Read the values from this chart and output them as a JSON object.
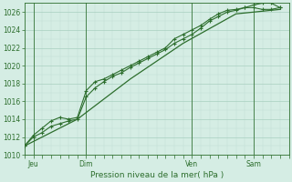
{
  "xlabel": "Pression niveau de la mer( hPa )",
  "background_color": "#d5ede4",
  "grid_color_major": "#a8cfc0",
  "grid_color_minor": "#c0ddd4",
  "line_color": "#2d6e2d",
  "ylim": [
    1010,
    1027
  ],
  "yticks": [
    1010,
    1012,
    1014,
    1016,
    1018,
    1020,
    1022,
    1024,
    1026
  ],
  "day_labels": [
    "Jeu",
    "Dim",
    "Ven",
    "Sam"
  ],
  "day_positions": [
    0.5,
    3.5,
    9.5,
    13.0
  ],
  "vline_positions": [
    0.5,
    3.5,
    9.5,
    13.0
  ],
  "series1_x": [
    0.0,
    0.5,
    1.0,
    1.5,
    2.0,
    2.5,
    3.0,
    3.5,
    4.0,
    4.5,
    5.0,
    5.5,
    6.0,
    6.5,
    7.0,
    7.5,
    8.0,
    8.5,
    9.0,
    9.5,
    10.0,
    10.5,
    11.0,
    11.5,
    12.0,
    12.5,
    13.0,
    13.5,
    14.0,
    14.5
  ],
  "series1_y": [
    1011.0,
    1012.0,
    1012.5,
    1013.2,
    1013.5,
    1013.8,
    1014.0,
    1016.5,
    1017.5,
    1018.2,
    1018.8,
    1019.2,
    1019.8,
    1020.3,
    1020.8,
    1021.3,
    1021.8,
    1022.5,
    1023.0,
    1023.5,
    1024.2,
    1025.0,
    1025.5,
    1026.0,
    1026.2,
    1026.5,
    1026.8,
    1027.0,
    1027.0,
    1026.5
  ],
  "series2_x": [
    0.0,
    0.5,
    1.0,
    1.5,
    2.0,
    2.5,
    3.0,
    3.5,
    4.0,
    4.5,
    5.0,
    5.5,
    6.0,
    6.5,
    7.0,
    7.5,
    8.0,
    8.5,
    9.0,
    9.5,
    10.0,
    10.5,
    11.0,
    11.5,
    12.0,
    12.5,
    13.0,
    13.5,
    14.0,
    14.5
  ],
  "series2_y": [
    1011.0,
    1012.2,
    1013.0,
    1013.8,
    1014.2,
    1014.0,
    1014.2,
    1017.2,
    1018.2,
    1018.5,
    1019.0,
    1019.5,
    1020.0,
    1020.5,
    1021.0,
    1021.5,
    1022.0,
    1023.0,
    1023.5,
    1024.0,
    1024.5,
    1025.2,
    1025.8,
    1026.2,
    1026.3,
    1026.5,
    1026.5,
    1026.3,
    1026.3,
    1026.5
  ],
  "series3_x": [
    0.0,
    3.0,
    6.0,
    9.0,
    12.0,
    14.5
  ],
  "series3_y": [
    1011.0,
    1014.0,
    1018.5,
    1022.5,
    1025.8,
    1026.3
  ],
  "xmin": 0.0,
  "xmax": 14.5
}
